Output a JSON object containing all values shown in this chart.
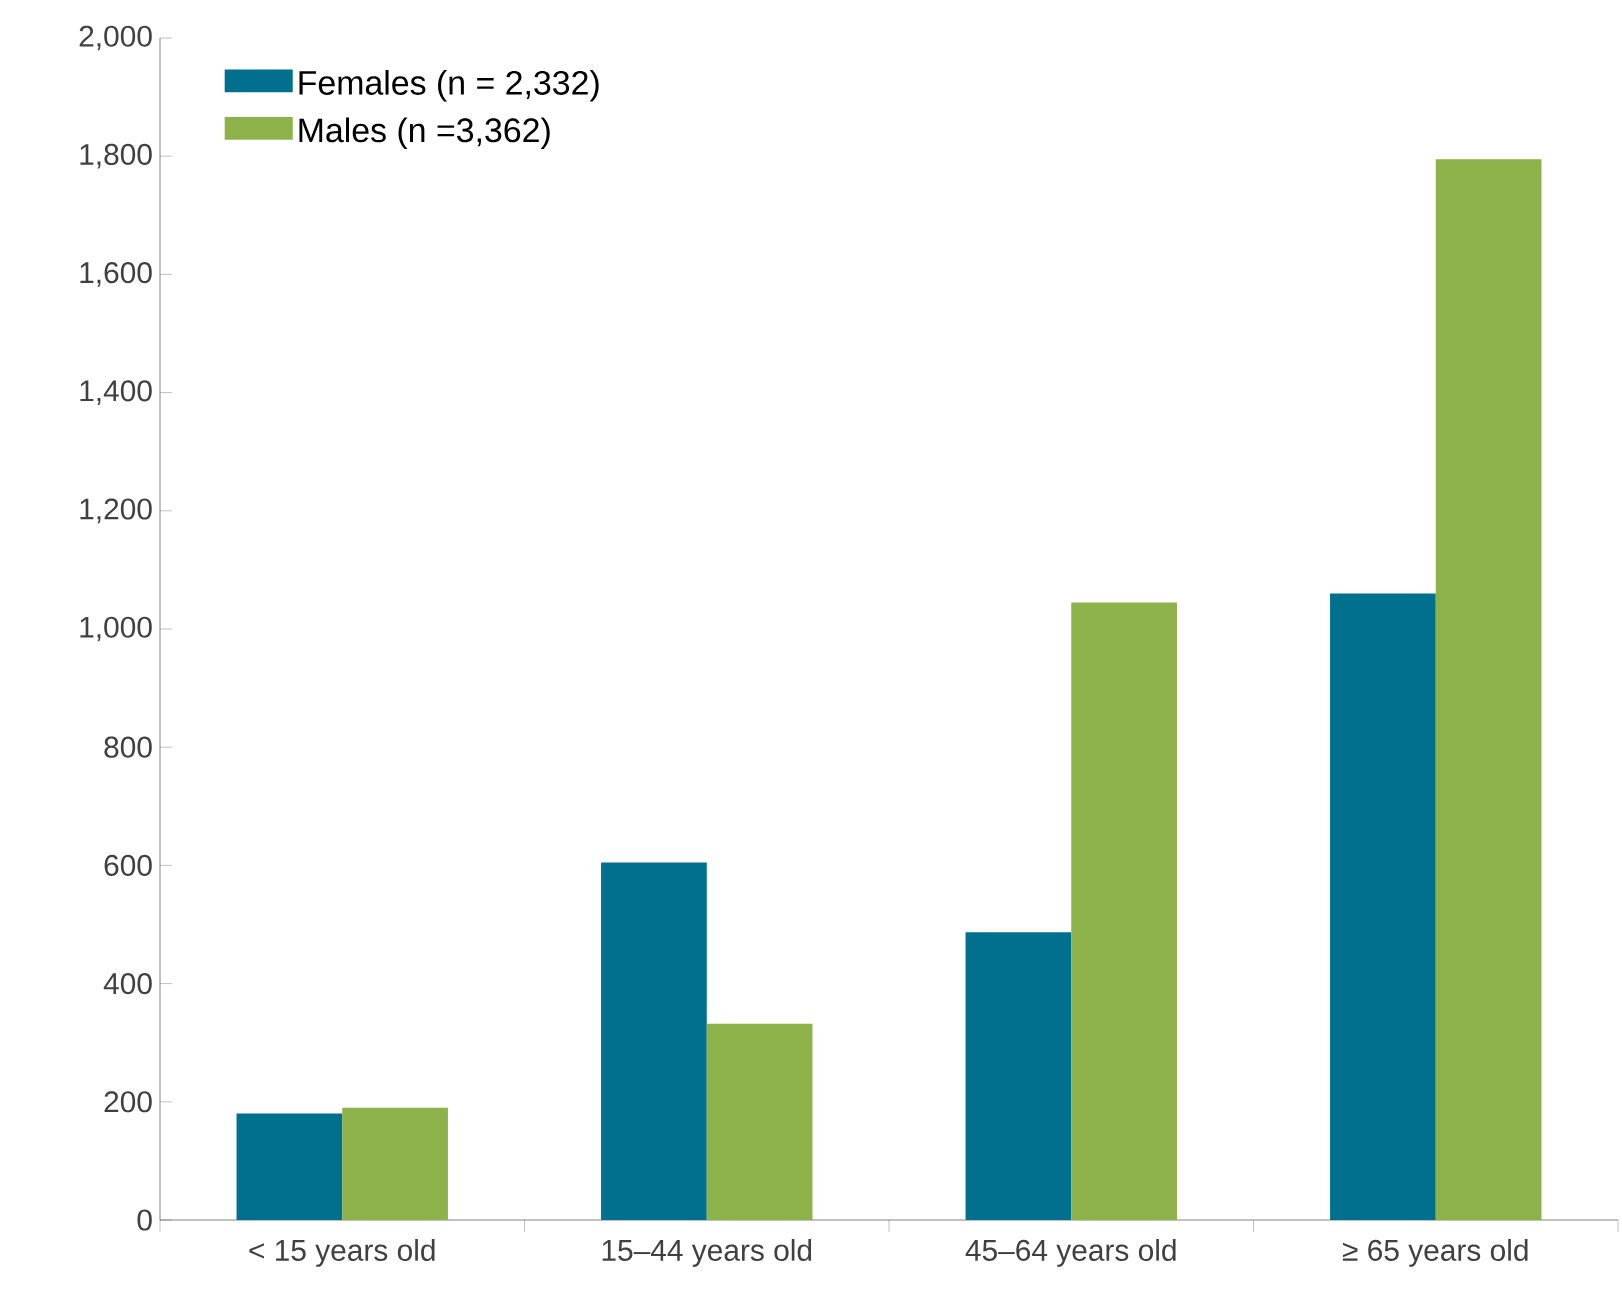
{
  "chart_data": {
    "type": "bar",
    "categories": [
      "< 15 years old",
      "15–44 years old",
      "45–64 years old",
      "≥ 65 years old"
    ],
    "series": [
      {
        "name": "Females (n = 2,332)",
        "color": "#00708f",
        "values": [
          180,
          605,
          487,
          1060
        ]
      },
      {
        "name": "Males (n =3,362)",
        "color": "#8db24a",
        "values": [
          190,
          332,
          1045,
          1795
        ]
      }
    ],
    "ylim": [
      0,
      2000
    ],
    "yticks": [
      {
        "value": 0,
        "label": "0"
      },
      {
        "value": 200,
        "label": "200"
      },
      {
        "value": 400,
        "label": "400"
      },
      {
        "value": 600,
        "label": "600"
      },
      {
        "value": 800,
        "label": "800"
      },
      {
        "value": 1000,
        "label": "1,000"
      },
      {
        "value": 1200,
        "label": "1,200"
      },
      {
        "value": 1400,
        "label": "1,400"
      },
      {
        "value": 1600,
        "label": "1,600"
      },
      {
        "value": 1800,
        "label": "1,800"
      },
      {
        "value": 2000,
        "label": "2,000"
      }
    ],
    "grid": false,
    "legend": "top left"
  }
}
